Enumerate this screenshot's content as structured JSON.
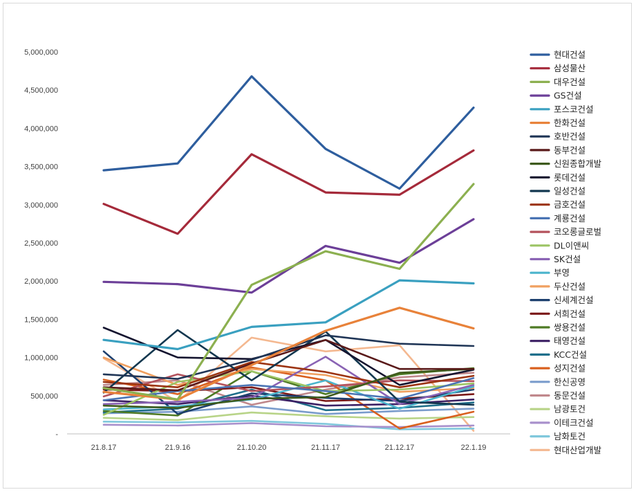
{
  "chart_data": {
    "type": "line",
    "title": "",
    "xlabel": "",
    "ylabel": "",
    "categories": [
      "21.8.17",
      "21.9.16",
      "21.10.20",
      "21.11.17",
      "21.12.17",
      "22.1.19"
    ],
    "yticks": [
      "-",
      "500,000",
      "1,000,000",
      "1,500,000",
      "2,000,000",
      "2,500,000",
      "3,000,000",
      "3,500,000",
      "4,000,000",
      "4,500,000",
      "5,000,000"
    ],
    "ylim": [
      0,
      5000000
    ],
    "grid": false,
    "legend_position": "right",
    "series": [
      {
        "name": "현대건설",
        "color": "#2e5e9e",
        "values": [
          3450000,
          3540000,
          4680000,
          3730000,
          3210000,
          4270000
        ]
      },
      {
        "name": "삼성물산",
        "color": "#a52a3a",
        "values": [
          3010000,
          2620000,
          3660000,
          3160000,
          3130000,
          3710000
        ]
      },
      {
        "name": "대우건설",
        "color": "#8cb050",
        "values": [
          600000,
          450000,
          1950000,
          2390000,
          2160000,
          3270000
        ]
      },
      {
        "name": "GS건설",
        "color": "#6c3f98",
        "values": [
          1990000,
          1960000,
          1850000,
          2460000,
          2240000,
          2810000
        ]
      },
      {
        "name": "포스코건설",
        "color": "#3aa0c0",
        "values": [
          1230000,
          1110000,
          1400000,
          1460000,
          2010000,
          1970000
        ]
      },
      {
        "name": "한화건설",
        "color": "#e8823a",
        "values": [
          550000,
          450000,
          900000,
          1350000,
          1650000,
          1380000
        ]
      },
      {
        "name": "호반건설",
        "color": "#1f3556",
        "values": [
          780000,
          720000,
          970000,
          1290000,
          1180000,
          1150000
        ]
      },
      {
        "name": "동부건설",
        "color": "#5a1a1a",
        "values": [
          610000,
          570000,
          920000,
          1230000,
          850000,
          850000
        ]
      },
      {
        "name": "신원종합개발",
        "color": "#3e5a1c",
        "values": [
          370000,
          340000,
          460000,
          480000,
          800000,
          850000
        ]
      },
      {
        "name": "롯데건설",
        "color": "#14142f",
        "values": [
          1390000,
          1000000,
          980000,
          1230000,
          640000,
          840000
        ]
      },
      {
        "name": "일성건설",
        "color": "#12374f",
        "values": [
          540000,
          1360000,
          700000,
          1340000,
          420000,
          380000
        ]
      },
      {
        "name": "금호건설",
        "color": "#9c3412",
        "values": [
          680000,
          610000,
          940000,
          810000,
          610000,
          760000
        ]
      },
      {
        "name": "계룡건설",
        "color": "#4a74b4",
        "values": [
          440000,
          560000,
          640000,
          560000,
          460000,
          730000
        ]
      },
      {
        "name": "코오롱글로벌",
        "color": "#b4525c",
        "values": [
          490000,
          780000,
          560000,
          620000,
          700000,
          690000
        ]
      },
      {
        "name": "DL이앤씨",
        "color": "#9cc464",
        "values": [
          250000,
          680000,
          820000,
          560000,
          580000,
          660000
        ]
      },
      {
        "name": "SK건설",
        "color": "#8a63b4",
        "values": [
          390000,
          420000,
          470000,
          1010000,
          390000,
          640000
        ]
      },
      {
        "name": "부영",
        "color": "#4bb4cc",
        "values": [
          320000,
          360000,
          450000,
          700000,
          330000,
          620000
        ]
      },
      {
        "name": "두산건설",
        "color": "#f0a060",
        "values": [
          1000000,
          640000,
          850000,
          770000,
          550000,
          600000
        ]
      },
      {
        "name": "신세계건설",
        "color": "#1c3f6e",
        "values": [
          1080000,
          260000,
          530000,
          470000,
          430000,
          580000
        ]
      },
      {
        "name": "서희건설",
        "color": "#7a1818",
        "values": [
          580000,
          560000,
          610000,
          430000,
          460000,
          520000
        ]
      },
      {
        "name": "쌍용건설",
        "color": "#4e7a24",
        "values": [
          300000,
          240000,
          820000,
          520000,
          780000,
          860000
        ]
      },
      {
        "name": "태영건설",
        "color": "#3c2064",
        "values": [
          440000,
          390000,
          500000,
          370000,
          390000,
          450000
        ]
      },
      {
        "name": "KCC건설",
        "color": "#1f6f8b",
        "values": [
          280000,
          330000,
          580000,
          310000,
          340000,
          410000
        ]
      },
      {
        "name": "성지건설",
        "color": "#d9601f",
        "values": [
          710000,
          520000,
          870000,
          700000,
          70000,
          290000
        ]
      },
      {
        "name": "한신공영",
        "color": "#7a9ccc",
        "values": [
          270000,
          290000,
          360000,
          260000,
          300000,
          330000
        ]
      },
      {
        "name": "동문건설",
        "color": "#c0888c",
        "values": [
          640000,
          700000,
          380000,
          580000,
          740000,
          800000
        ]
      },
      {
        "name": "남광토건",
        "color": "#b8d488",
        "values": [
          210000,
          180000,
          280000,
          230000,
          200000,
          220000
        ]
      },
      {
        "name": "이테크건설",
        "color": "#a890cc",
        "values": [
          120000,
          110000,
          140000,
          100000,
          90000,
          110000
        ]
      },
      {
        "name": "남화토건",
        "color": "#80c8dc",
        "values": [
          160000,
          150000,
          170000,
          130000,
          60000,
          70000
        ]
      },
      {
        "name": "현대산업개발",
        "color": "#f4b890",
        "values": [
          990000,
          420000,
          1260000,
          1080000,
          1160000,
          40000
        ]
      }
    ]
  }
}
